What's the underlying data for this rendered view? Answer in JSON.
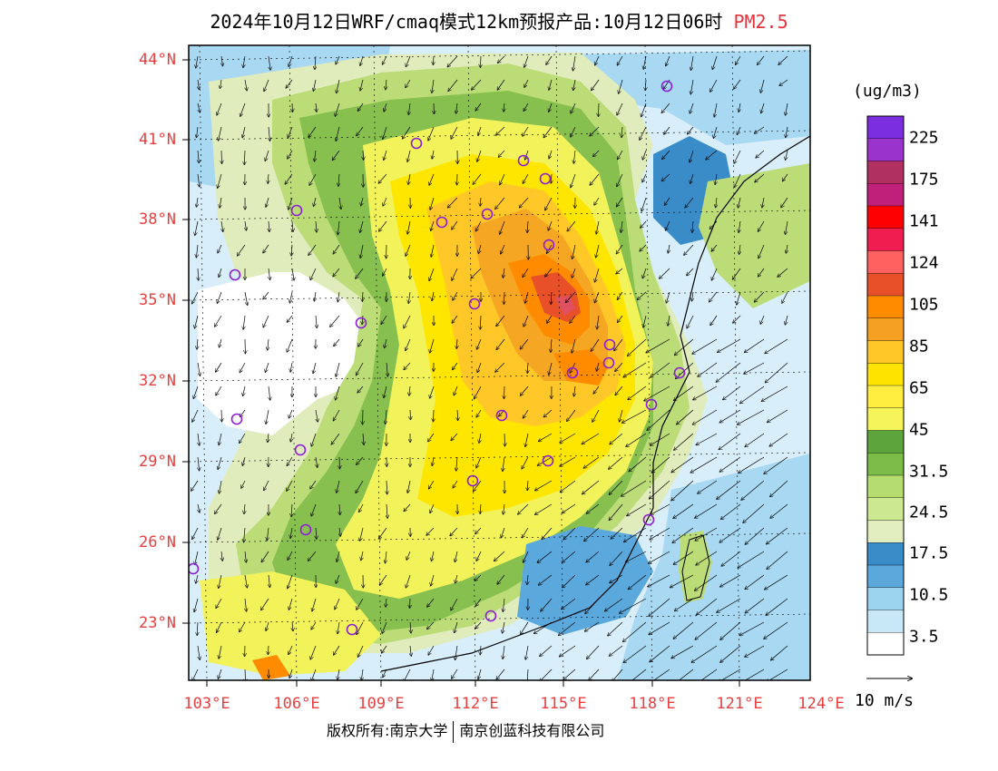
{
  "title": {
    "main": "2024年10月12日WRF/cmaq模式12km预报产品:10月12日06时",
    "variable": "PM2.5"
  },
  "axes": {
    "lat_labels": [
      "44°N",
      "41°N",
      "38°N",
      "35°N",
      "32°N",
      "29°N",
      "26°N",
      "23°N"
    ],
    "lon_labels": [
      "103°E",
      "106°E",
      "109°E",
      "112°E",
      "115°E",
      "118°E",
      "121°E",
      "124°E"
    ]
  },
  "colorbar": {
    "unit": "(ug/m3)",
    "levels": [
      "225",
      "175",
      "141",
      "124",
      "105",
      "85",
      "65",
      "45",
      "31.5",
      "24.5",
      "17.5",
      "10.5",
      "3.5"
    ],
    "colors": [
      "#7b2de0",
      "#9a33cc",
      "#b03060",
      "#c0207a",
      "#ff0000",
      "#f01e50",
      "#ff6060",
      "#e8502a",
      "#ff8c00",
      "#f5a020",
      "#ffc828",
      "#ffe400",
      "#ffee40",
      "#f5f55a",
      "#5ea43c",
      "#7cbc48",
      "#b4dc6e",
      "#cce890",
      "#e2eec0",
      "#3a8cc8",
      "#5aa8dc",
      "#9cd4f0",
      "#c8e8f8",
      "#ffffff"
    ]
  },
  "wind_reference": {
    "label": "10 m/s"
  },
  "copyright": {
    "left": "版权所有:南京大学",
    "right": "南京创蓝科技有限公司"
  },
  "map_colors": {
    "white": "#ffffff",
    "pale_blue": "#d8eefa",
    "light_blue": "#a8d8f2",
    "mid_blue": "#5aa8dc",
    "dark_blue": "#3a8cc8",
    "pale_green": "#e0ecbc",
    "light_green": "#bcdc78",
    "green": "#88c050",
    "dark_green": "#5ea43c",
    "yellow_light": "#f2f25a",
    "yellow": "#ffe600",
    "gold": "#ffc828",
    "orange_light": "#f5a623",
    "orange": "#ff8c00",
    "red_orange": "#e8502a",
    "hotspot": "#e05060"
  },
  "city_marker_color": "#8b1fd8"
}
